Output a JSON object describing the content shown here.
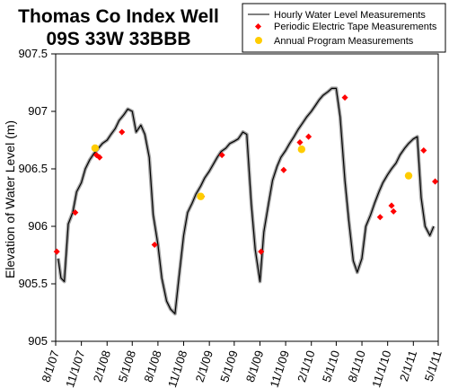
{
  "chart_data": {
    "type": "line",
    "title": [
      "Thomas Co Index Well",
      "09S 33W 33BBB"
    ],
    "ylabel": "Elevation of Water Level (m)",
    "xlabel": "",
    "ylim": [
      905,
      907.5
    ],
    "yticks": [
      905,
      905.5,
      906,
      906.5,
      907,
      907.5
    ],
    "xlim": [
      "2007-08-01",
      "2011-05-01"
    ],
    "xticks": [
      "8/1/07",
      "11/1/07",
      "2/1/08",
      "5/1/08",
      "8/1/08",
      "11/1/08",
      "2/1/09",
      "5/1/09",
      "8/1/09",
      "11/1/09",
      "2/1/10",
      "5/1/10",
      "8/1/10",
      "11/1/10",
      "2/1/11",
      "5/1/11"
    ],
    "legend": {
      "position": "top-right",
      "entries": [
        "Hourly Water Level Measurements",
        "Periodic Electric Tape Measurements",
        "Annual Program Measurements"
      ]
    },
    "series": [
      {
        "name": "Hourly Water Level Measurements",
        "kind": "line",
        "color": "#000000",
        "x": [
          "2007-08-10",
          "2007-08-20",
          "2007-09-01",
          "2007-09-15",
          "2007-10-01",
          "2007-10-15",
          "2007-11-01",
          "2007-11-15",
          "2007-12-01",
          "2007-12-15",
          "2008-01-01",
          "2008-01-15",
          "2008-02-01",
          "2008-02-15",
          "2008-03-01",
          "2008-03-15",
          "2008-04-01",
          "2008-04-15",
          "2008-05-01",
          "2008-05-15",
          "2008-06-01",
          "2008-06-15",
          "2008-07-01",
          "2008-07-15",
          "2008-08-01",
          "2008-08-15",
          "2008-09-01",
          "2008-09-15",
          "2008-10-01",
          "2008-10-15",
          "2008-11-01",
          "2008-11-15",
          "2008-12-01",
          "2008-12-15",
          "2009-01-01",
          "2009-01-15",
          "2009-02-01",
          "2009-02-15",
          "2009-03-01",
          "2009-03-15",
          "2009-04-01",
          "2009-04-15",
          "2009-05-01",
          "2009-05-15",
          "2009-06-01",
          "2009-06-15",
          "2009-07-01",
          "2009-07-15",
          "2009-08-01",
          "2009-08-15",
          "2009-09-01",
          "2009-09-15",
          "2009-10-01",
          "2009-10-15",
          "2009-11-01",
          "2009-11-15",
          "2009-12-01",
          "2009-12-15",
          "2010-01-01",
          "2010-01-15",
          "2010-02-01",
          "2010-02-15",
          "2010-03-01",
          "2010-03-15",
          "2010-04-01",
          "2010-04-15",
          "2010-05-01",
          "2010-05-15",
          "2010-06-01",
          "2010-06-15",
          "2010-07-01",
          "2010-07-15",
          "2010-08-01",
          "2010-08-15",
          "2010-09-01",
          "2010-09-15",
          "2010-10-01",
          "2010-10-15",
          "2010-11-01",
          "2010-11-15",
          "2010-12-01",
          "2010-12-15",
          "2011-01-01",
          "2011-01-15",
          "2011-02-01",
          "2011-02-15",
          "2011-03-01",
          "2011-03-15",
          "2011-04-01",
          "2011-04-15"
        ],
        "y": [
          905.72,
          905.55,
          905.52,
          906.02,
          906.12,
          906.3,
          906.38,
          906.5,
          906.58,
          906.63,
          906.68,
          906.72,
          906.75,
          906.8,
          906.85,
          906.92,
          906.97,
          907.02,
          907.0,
          906.82,
          906.88,
          906.8,
          906.6,
          906.1,
          905.84,
          905.55,
          905.35,
          905.28,
          905.24,
          905.55,
          905.92,
          906.12,
          906.2,
          906.28,
          906.35,
          906.42,
          906.48,
          906.54,
          906.6,
          906.65,
          906.68,
          906.72,
          906.74,
          906.76,
          906.82,
          906.8,
          906.2,
          905.8,
          905.52,
          905.95,
          906.2,
          906.4,
          906.52,
          906.6,
          906.66,
          906.72,
          906.78,
          906.84,
          906.9,
          906.95,
          907.0,
          907.05,
          907.1,
          907.14,
          907.17,
          907.2,
          907.2,
          906.95,
          906.4,
          906.05,
          905.7,
          905.6,
          905.72,
          906.0,
          906.1,
          906.2,
          906.3,
          906.38,
          906.45,
          906.5,
          906.55,
          906.62,
          906.68,
          906.72,
          906.76,
          906.78,
          906.25,
          906.0,
          905.92,
          906.0
        ]
      },
      {
        "name": "Periodic Electric Tape Measurements",
        "kind": "points",
        "color": "#ff0000",
        "x": [
          "2007-08-05",
          "2007-10-10",
          "2007-12-25",
          "2008-01-05",
          "2008-03-25",
          "2008-07-20",
          "2009-01-05",
          "2009-03-18",
          "2009-08-05",
          "2009-10-25",
          "2009-12-22",
          "2010-01-22",
          "2010-06-01",
          "2010-10-05",
          "2010-11-15",
          "2010-11-22",
          "2011-03-10",
          "2011-04-20"
        ],
        "y": [
          905.78,
          906.12,
          906.62,
          906.6,
          906.82,
          905.84,
          906.26,
          906.62,
          905.78,
          906.49,
          906.73,
          906.78,
          907.12,
          906.08,
          906.18,
          906.13,
          906.66,
          906.39
        ]
      },
      {
        "name": "Annual Program Measurements",
        "kind": "points",
        "color": "#ffcc00",
        "x": [
          "2007-12-20",
          "2009-01-01",
          "2009-12-28",
          "2011-01-15"
        ],
        "y": [
          906.68,
          906.26,
          906.67,
          906.44
        ]
      }
    ]
  }
}
